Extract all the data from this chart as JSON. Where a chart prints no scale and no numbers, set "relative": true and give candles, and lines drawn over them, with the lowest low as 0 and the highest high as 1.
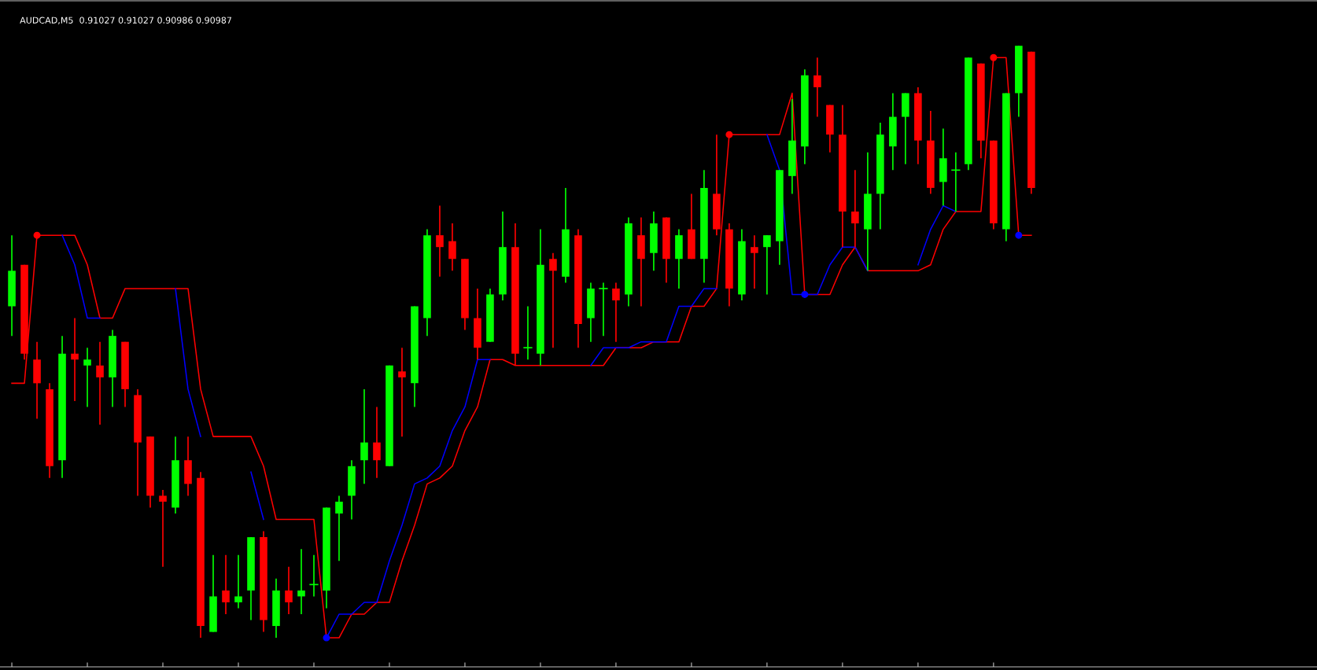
{
  "chart_data": {
    "type": "candlestick",
    "title": "AUDCAD,M5  0.91027 0.91027 0.90986 0.90987",
    "relative": true,
    "grid": false,
    "legend": false,
    "categories": [
      null,
      null,
      null,
      null,
      null,
      null,
      null,
      null,
      null,
      null,
      null,
      null,
      null,
      null,
      null,
      null,
      null,
      null,
      null,
      null,
      null,
      null,
      null,
      null,
      null,
      null,
      null,
      null,
      null,
      null,
      null,
      null,
      null,
      null,
      null,
      null,
      null,
      null,
      null,
      null,
      null,
      null,
      null,
      null,
      null,
      null,
      null,
      null,
      null,
      null,
      null,
      null,
      null,
      null,
      null,
      null,
      null,
      null,
      null,
      null,
      null,
      null,
      null,
      null,
      null,
      null,
      null,
      null,
      null,
      null,
      null,
      null,
      null,
      null,
      null,
      null,
      null,
      null,
      null,
      null,
      null,
      null
    ],
    "ohlc": [
      [
        0.56,
        0.68,
        0.51,
        0.62
      ],
      [
        0.63,
        0.63,
        0.47,
        0.48
      ],
      [
        0.47,
        0.5,
        0.37,
        0.43
      ],
      [
        0.42,
        0.43,
        0.27,
        0.29
      ],
      [
        0.3,
        0.51,
        0.27,
        0.48
      ],
      [
        0.48,
        0.54,
        0.4,
        0.47
      ],
      [
        0.46,
        0.49,
        0.39,
        0.47
      ],
      [
        0.46,
        0.5,
        0.36,
        0.44
      ],
      [
        0.44,
        0.52,
        0.39,
        0.51
      ],
      [
        0.5,
        0.5,
        0.39,
        0.42
      ],
      [
        0.41,
        0.42,
        0.24,
        0.33
      ],
      [
        0.34,
        0.34,
        0.22,
        0.24
      ],
      [
        0.24,
        0.25,
        0.12,
        0.23
      ],
      [
        0.22,
        0.34,
        0.21,
        0.3
      ],
      [
        0.3,
        0.34,
        0.24,
        0.26
      ],
      [
        0.27,
        0.28,
        0.0,
        0.02
      ],
      [
        0.01,
        0.14,
        0.01,
        0.07
      ],
      [
        0.08,
        0.14,
        0.04,
        0.06
      ],
      [
        0.06,
        0.14,
        0.05,
        0.07
      ],
      [
        0.08,
        0.17,
        0.03,
        0.17
      ],
      [
        0.17,
        0.18,
        0.01,
        0.03
      ],
      [
        0.02,
        0.1,
        0.0,
        0.08
      ],
      [
        0.08,
        0.12,
        0.04,
        0.06
      ],
      [
        0.07,
        0.15,
        0.04,
        0.08
      ],
      [
        0.09,
        0.14,
        0.07,
        0.09
      ],
      [
        0.08,
        0.22,
        0.05,
        0.22
      ],
      [
        0.21,
        0.24,
        0.13,
        0.23
      ],
      [
        0.24,
        0.3,
        0.2,
        0.29
      ],
      [
        0.3,
        0.42,
        0.26,
        0.33
      ],
      [
        0.33,
        0.39,
        0.27,
        0.3
      ],
      [
        0.29,
        0.46,
        0.29,
        0.46
      ],
      [
        0.45,
        0.49,
        0.34,
        0.44
      ],
      [
        0.43,
        0.56,
        0.39,
        0.56
      ],
      [
        0.54,
        0.69,
        0.51,
        0.68
      ],
      [
        0.68,
        0.73,
        0.61,
        0.66
      ],
      [
        0.67,
        0.7,
        0.62,
        0.64
      ],
      [
        0.64,
        0.64,
        0.52,
        0.54
      ],
      [
        0.54,
        0.59,
        0.47,
        0.49
      ],
      [
        0.5,
        0.59,
        0.5,
        0.58
      ],
      [
        0.58,
        0.72,
        0.57,
        0.66
      ],
      [
        0.66,
        0.7,
        0.46,
        0.48
      ],
      [
        0.49,
        0.56,
        0.47,
        0.49
      ],
      [
        0.48,
        0.69,
        0.46,
        0.63
      ],
      [
        0.64,
        0.65,
        0.49,
        0.62
      ],
      [
        0.61,
        0.76,
        0.6,
        0.69
      ],
      [
        0.68,
        0.69,
        0.49,
        0.53
      ],
      [
        0.54,
        0.6,
        0.5,
        0.59
      ],
      [
        0.59,
        0.6,
        0.51,
        0.59
      ],
      [
        0.59,
        0.6,
        0.5,
        0.57
      ],
      [
        0.58,
        0.71,
        0.56,
        0.7
      ],
      [
        0.68,
        0.71,
        0.56,
        0.64
      ],
      [
        0.65,
        0.72,
        0.62,
        0.7
      ],
      [
        0.71,
        0.71,
        0.6,
        0.64
      ],
      [
        0.64,
        0.69,
        0.59,
        0.68
      ],
      [
        0.69,
        0.75,
        0.64,
        0.64
      ],
      [
        0.64,
        0.79,
        0.6,
        0.76
      ],
      [
        0.75,
        0.85,
        0.68,
        0.69
      ],
      [
        0.69,
        0.7,
        0.56,
        0.59
      ],
      [
        0.58,
        0.69,
        0.57,
        0.67
      ],
      [
        0.66,
        0.68,
        0.59,
        0.65
      ],
      [
        0.66,
        0.68,
        0.58,
        0.68
      ],
      [
        0.67,
        0.79,
        0.63,
        0.79
      ],
      [
        0.78,
        0.91,
        0.75,
        0.84
      ],
      [
        0.83,
        0.96,
        0.8,
        0.95
      ],
      [
        0.95,
        0.98,
        0.88,
        0.93
      ],
      [
        0.9,
        0.9,
        0.82,
        0.85
      ],
      [
        0.85,
        0.9,
        0.66,
        0.72
      ],
      [
        0.72,
        0.79,
        0.66,
        0.7
      ],
      [
        0.69,
        0.82,
        0.62,
        0.75
      ],
      [
        0.75,
        0.87,
        0.69,
        0.85
      ],
      [
        0.83,
        0.92,
        0.79,
        0.88
      ],
      [
        0.88,
        0.92,
        0.8,
        0.92
      ],
      [
        0.92,
        0.93,
        0.8,
        0.84
      ],
      [
        0.84,
        0.89,
        0.75,
        0.76
      ],
      [
        0.77,
        0.86,
        0.73,
        0.81
      ],
      [
        0.79,
        0.82,
        0.72,
        0.79
      ],
      [
        0.8,
        0.98,
        0.79,
        0.98
      ],
      [
        0.97,
        0.97,
        0.81,
        0.84
      ],
      [
        0.84,
        0.84,
        0.69,
        0.7
      ],
      [
        0.69,
        0.92,
        0.67,
        0.92
      ],
      [
        0.92,
        1.0,
        0.88,
        1.0
      ],
      [
        0.99,
        0.99,
        0.75,
        0.76
      ]
    ],
    "colors": [
      "#00ff00",
      "#ff0000",
      "#ff0000",
      "#ff0000",
      "#00ff00",
      "#ff0000",
      "#00ff00",
      "#ff0000",
      "#00ff00",
      "#ff0000",
      "#ff0000",
      "#ff0000",
      "#ff0000",
      "#00ff00",
      "#ff0000",
      "#ff0000",
      "#00ff00",
      "#ff0000",
      "#00ff00",
      "#00ff00",
      "#ff0000",
      "#00ff00",
      "#ff0000",
      "#00ff00",
      "#00ff00",
      "#00ff00",
      "#00ff00",
      "#00ff00",
      "#00ff00",
      "#ff0000",
      "#00ff00",
      "#ff0000",
      "#00ff00",
      "#00ff00",
      "#ff0000",
      "#ff0000",
      "#ff0000",
      "#ff0000",
      "#00ff00",
      "#00ff00",
      "#ff0000",
      "#00ff00",
      "#00ff00",
      "#ff0000",
      "#00ff00",
      "#ff0000",
      "#00ff00",
      "#00ff00",
      "#ff0000",
      "#00ff00",
      "#ff0000",
      "#00ff00",
      "#ff0000",
      "#00ff00",
      "#ff0000",
      "#00ff00",
      "#ff0000",
      "#ff0000",
      "#00ff00",
      "#ff0000",
      "#00ff00",
      "#00ff00",
      "#00ff00",
      "#00ff00",
      "#ff0000",
      "#ff0000",
      "#ff0000",
      "#ff0000",
      "#00ff00",
      "#00ff00",
      "#00ff00",
      "#00ff00",
      "#ff0000",
      "#ff0000",
      "#00ff00",
      "#00ff00",
      "#00ff00",
      "#ff0000",
      "#ff0000",
      "#00ff00",
      "#00ff00",
      "#ff0000"
    ],
    "series": [
      {
        "type": "line",
        "color": "#ff0000",
        "values": [
          0.43,
          0.43,
          0.68,
          0.68,
          0.68,
          0.68,
          0.63,
          0.54,
          0.54,
          0.59,
          0.59,
          0.59,
          0.59,
          0.59,
          0.59,
          0.42,
          0.34,
          0.34,
          0.34,
          0.34,
          0.29,
          0.2,
          0.2,
          0.2,
          0.2,
          0.0,
          0.0,
          0.04,
          0.04,
          0.06,
          0.06,
          0.13,
          0.19,
          0.26,
          0.27,
          0.29,
          0.35,
          0.39,
          0.47,
          0.47,
          0.46,
          0.46,
          0.46,
          0.46,
          0.46,
          0.46,
          0.46,
          0.46,
          0.49,
          0.49,
          0.49,
          0.5,
          0.5,
          0.5,
          0.56,
          0.56,
          0.59,
          0.85,
          0.85,
          0.85,
          0.85,
          0.85,
          0.92,
          0.58,
          0.58,
          0.58,
          0.63,
          0.66,
          0.62,
          0.62,
          0.62,
          0.62,
          0.62,
          0.63,
          0.69,
          0.72,
          0.72,
          0.72,
          0.98,
          0.98,
          0.68,
          0.68
        ]
      },
      {
        "type": "line",
        "color": "#0000ff",
        "values": [
          null,
          null,
          null,
          null,
          0.68,
          0.63,
          0.54,
          0.54,
          null,
          null,
          null,
          null,
          null,
          0.59,
          0.42,
          0.34,
          null,
          null,
          null,
          0.28,
          0.2,
          null,
          null,
          null,
          null,
          0.0,
          0.04,
          0.04,
          0.06,
          0.06,
          0.13,
          0.19,
          0.26,
          0.27,
          0.29,
          0.35,
          0.39,
          0.47,
          0.47,
          null,
          null,
          null,
          null,
          null,
          null,
          null,
          0.46,
          0.49,
          0.49,
          0.49,
          0.5,
          0.5,
          0.5,
          0.56,
          0.56,
          0.59,
          0.59,
          null,
          null,
          null,
          0.85,
          0.79,
          0.58,
          0.58,
          0.58,
          0.63,
          0.66,
          0.66,
          0.62,
          null,
          null,
          null,
          0.63,
          0.69,
          0.73,
          0.72,
          null,
          null,
          null,
          null,
          null,
          null
        ]
      },
      {
        "type": "scatter",
        "color": "#ff0000",
        "marker": "circle",
        "values": [
          null,
          null,
          0.68,
          null,
          null,
          null,
          null,
          null,
          null,
          null,
          null,
          null,
          null,
          null,
          null,
          null,
          null,
          null,
          null,
          null,
          null,
          null,
          null,
          null,
          null,
          null,
          null,
          null,
          null,
          null,
          null,
          null,
          null,
          null,
          null,
          null,
          null,
          null,
          null,
          null,
          null,
          null,
          null,
          null,
          null,
          null,
          null,
          null,
          null,
          null,
          null,
          null,
          null,
          null,
          null,
          null,
          null,
          0.85,
          null,
          null,
          null,
          null,
          null,
          null,
          null,
          null,
          null,
          null,
          null,
          null,
          null,
          null,
          null,
          null,
          null,
          null,
          null,
          null,
          0.98,
          null,
          null,
          null
        ]
      },
      {
        "type": "scatter",
        "color": "#0000ff",
        "marker": "circle",
        "values": [
          null,
          null,
          null,
          null,
          null,
          null,
          null,
          null,
          null,
          null,
          null,
          null,
          null,
          null,
          null,
          null,
          null,
          null,
          null,
          null,
          null,
          null,
          null,
          null,
          null,
          0.0,
          null,
          null,
          null,
          null,
          null,
          null,
          null,
          null,
          null,
          null,
          null,
          null,
          null,
          null,
          null,
          null,
          null,
          null,
          null,
          null,
          null,
          null,
          null,
          null,
          null,
          null,
          null,
          null,
          null,
          null,
          null,
          null,
          null,
          null,
          null,
          null,
          null,
          0.58,
          null,
          null,
          null,
          null,
          null,
          null,
          null,
          null,
          null,
          null,
          null,
          null,
          null,
          null,
          null,
          null,
          0.68,
          null
        ]
      }
    ]
  }
}
